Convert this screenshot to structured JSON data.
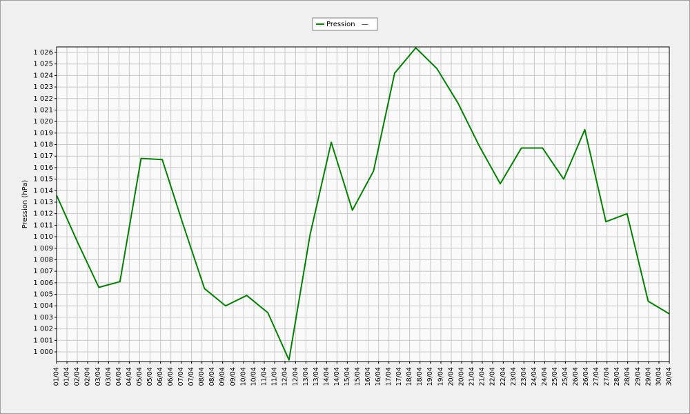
{
  "chart_data": {
    "type": "line",
    "y_label": "Pression (hPa)",
    "legend_note": "—",
    "x": [
      1,
      2,
      3,
      4,
      5,
      6,
      7,
      8,
      9,
      10,
      11,
      12,
      13,
      14,
      15,
      16,
      17,
      18,
      19,
      20,
      21,
      22,
      23,
      24,
      25,
      26,
      27,
      28,
      29,
      30
    ],
    "series": [
      {
        "name": "Pression",
        "color": "#008000",
        "values": [
          1013.6,
          1009.5,
          1005.6,
          1006.1,
          1016.8,
          1016.7,
          1011.0,
          1005.5,
          1004.0,
          1004.9,
          1003.4,
          999.3,
          1010.2,
          1018.2,
          1012.3,
          1015.7,
          1024.2,
          1026.4,
          1024.6,
          1021.6,
          1017.9,
          1014.6,
          1017.7,
          1017.7,
          1015.0,
          1019.3,
          1011.3,
          1012.0,
          1004.4,
          1003.3
        ]
      }
    ],
    "xlim": [
      1,
      30
    ],
    "xticks": [
      {
        "value": 1,
        "label": "01/04"
      },
      {
        "value": 1.49,
        "label": "01/04"
      },
      {
        "value": 1.98,
        "label": "02/04"
      },
      {
        "value": 2.47,
        "label": "02/04"
      },
      {
        "value": 2.97,
        "label": "03/04"
      },
      {
        "value": 3.46,
        "label": "03/04"
      },
      {
        "value": 3.95,
        "label": "04/04"
      },
      {
        "value": 4.44,
        "label": "04/04"
      },
      {
        "value": 4.93,
        "label": "05/04"
      },
      {
        "value": 5.42,
        "label": "05/04"
      },
      {
        "value": 5.92,
        "label": "06/04"
      },
      {
        "value": 6.41,
        "label": "06/04"
      },
      {
        "value": 6.9,
        "label": "07/04"
      },
      {
        "value": 7.39,
        "label": "07/04"
      },
      {
        "value": 7.88,
        "label": "08/04"
      },
      {
        "value": 8.37,
        "label": "08/04"
      },
      {
        "value": 8.86,
        "label": "09/04"
      },
      {
        "value": 9.36,
        "label": "09/04"
      },
      {
        "value": 9.85,
        "label": "10/04"
      },
      {
        "value": 10.34,
        "label": "10/04"
      },
      {
        "value": 10.83,
        "label": "11/04"
      },
      {
        "value": 11.32,
        "label": "11/04"
      },
      {
        "value": 11.81,
        "label": "12/04"
      },
      {
        "value": 12.31,
        "label": "12/04"
      },
      {
        "value": 12.8,
        "label": "13/04"
      },
      {
        "value": 13.29,
        "label": "13/04"
      },
      {
        "value": 13.78,
        "label": "14/04"
      },
      {
        "value": 14.27,
        "label": "14/04"
      },
      {
        "value": 14.76,
        "label": "15/04"
      },
      {
        "value": 15.25,
        "label": "15/04"
      },
      {
        "value": 15.75,
        "label": "16/04"
      },
      {
        "value": 16.24,
        "label": "16/04"
      },
      {
        "value": 16.73,
        "label": "17/04"
      },
      {
        "value": 17.22,
        "label": "17/04"
      },
      {
        "value": 17.71,
        "label": "18/04"
      },
      {
        "value": 18.2,
        "label": "18/04"
      },
      {
        "value": 18.69,
        "label": "19/04"
      },
      {
        "value": 19.19,
        "label": "19/04"
      },
      {
        "value": 19.68,
        "label": "20/04"
      },
      {
        "value": 20.17,
        "label": "20/04"
      },
      {
        "value": 20.66,
        "label": "21/04"
      },
      {
        "value": 21.15,
        "label": "21/04"
      },
      {
        "value": 21.64,
        "label": "22/04"
      },
      {
        "value": 22.14,
        "label": "22/04"
      },
      {
        "value": 22.63,
        "label": "23/04"
      },
      {
        "value": 23.12,
        "label": "23/04"
      },
      {
        "value": 23.61,
        "label": "24/04"
      },
      {
        "value": 24.1,
        "label": "24/04"
      },
      {
        "value": 24.59,
        "label": "25/04"
      },
      {
        "value": 25.08,
        "label": "25/04"
      },
      {
        "value": 25.58,
        "label": "26/04"
      },
      {
        "value": 26.07,
        "label": "26/04"
      },
      {
        "value": 26.56,
        "label": "27/04"
      },
      {
        "value": 27.05,
        "label": "27/04"
      },
      {
        "value": 27.54,
        "label": "28/04"
      },
      {
        "value": 28.03,
        "label": "28/04"
      },
      {
        "value": 28.53,
        "label": "29/04"
      },
      {
        "value": 29.02,
        "label": "29/04"
      },
      {
        "value": 29.51,
        "label": "30/04"
      },
      {
        "value": 30,
        "label": "30/04"
      }
    ],
    "ylim": [
      999.16,
      1026.48
    ],
    "yticks": [
      {
        "value": 1000,
        "label": "1 000"
      },
      {
        "value": 1001,
        "label": "1 001"
      },
      {
        "value": 1002,
        "label": "1 002"
      },
      {
        "value": 1003,
        "label": "1 003"
      },
      {
        "value": 1004,
        "label": "1 004"
      },
      {
        "value": 1005,
        "label": "1 005"
      },
      {
        "value": 1006,
        "label": "1 006"
      },
      {
        "value": 1007,
        "label": "1 007"
      },
      {
        "value": 1008,
        "label": "1 008"
      },
      {
        "value": 1009,
        "label": "1 009"
      },
      {
        "value": 1010,
        "label": "1 010"
      },
      {
        "value": 1011,
        "label": "1 011"
      },
      {
        "value": 1012,
        "label": "1 012"
      },
      {
        "value": 1013,
        "label": "1 013"
      },
      {
        "value": 1014,
        "label": "1 014"
      },
      {
        "value": 1015,
        "label": "1 015"
      },
      {
        "value": 1016,
        "label": "1 016"
      },
      {
        "value": 1017,
        "label": "1 017"
      },
      {
        "value": 1018,
        "label": "1 018"
      },
      {
        "value": 1019,
        "label": "1 019"
      },
      {
        "value": 1020,
        "label": "1 020"
      },
      {
        "value": 1021,
        "label": "1 021"
      },
      {
        "value": 1022,
        "label": "1 022"
      },
      {
        "value": 1023,
        "label": "1 023"
      },
      {
        "value": 1024,
        "label": "1 024"
      },
      {
        "value": 1025,
        "label": "1 025"
      },
      {
        "value": 1026,
        "label": "1 026"
      }
    ],
    "grid": true,
    "legend": "top"
  }
}
